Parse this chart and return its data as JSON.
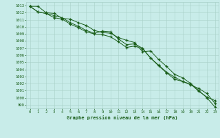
{
  "background_color": "#c8ece9",
  "grid_color": "#a8d0c8",
  "line_color": "#1a5e1a",
  "xlabel": "Graphe pression niveau de la mer (hPa)",
  "xlim": [
    -0.5,
    23.5
  ],
  "ylim": [
    998.5,
    1013.5
  ],
  "xticks": [
    0,
    1,
    2,
    3,
    4,
    5,
    6,
    7,
    8,
    9,
    10,
    11,
    12,
    13,
    14,
    15,
    16,
    17,
    18,
    19,
    20,
    21,
    22,
    23
  ],
  "yticks": [
    999,
    1000,
    1001,
    1002,
    1003,
    1004,
    1005,
    1006,
    1007,
    1008,
    1009,
    1010,
    1011,
    1012,
    1013
  ],
  "series1": [
    1012.9,
    1012.9,
    1012.0,
    1011.9,
    1011.2,
    1011.1,
    1010.6,
    1010.2,
    1009.5,
    1009.2,
    1009.1,
    1008.5,
    1008.1,
    1007.8,
    1006.5,
    1006.6,
    1005.4,
    1004.4,
    1003.3,
    1002.8,
    1002.0,
    1001.0,
    1000.0,
    998.7
  ],
  "series2": [
    1012.9,
    1012.1,
    1011.9,
    1011.6,
    1011.3,
    1010.6,
    1010.1,
    1009.5,
    1009.1,
    1009.4,
    1009.3,
    1008.3,
    1007.5,
    1007.6,
    1007.0,
    1005.6,
    1004.5,
    1003.5,
    1002.6,
    1002.3,
    1001.8,
    1001.3,
    1000.6,
    999.2
  ],
  "series3": [
    1012.9,
    1012.1,
    1011.9,
    1011.3,
    1011.1,
    1010.4,
    1009.9,
    1009.3,
    1009.0,
    1008.9,
    1008.6,
    1007.9,
    1007.1,
    1007.3,
    1006.9,
    1005.6,
    1004.6,
    1003.6,
    1002.9,
    1002.3,
    1001.9,
    1000.9,
    1000.1,
    999.6
  ]
}
